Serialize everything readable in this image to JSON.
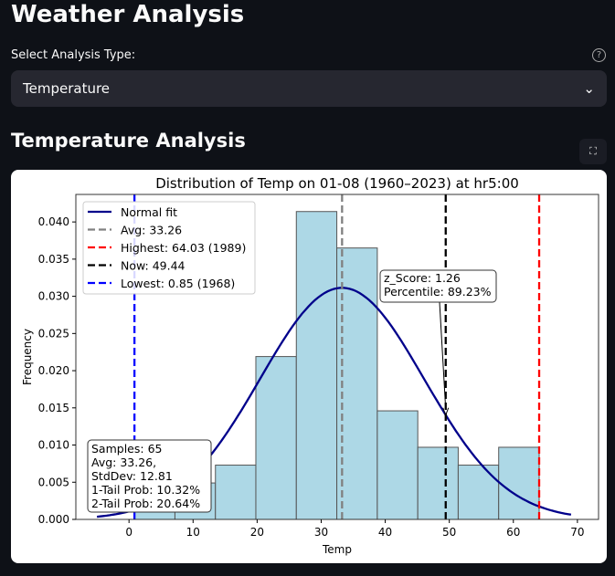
{
  "app": {
    "title": "Weather Analysis",
    "select_label": "Select Analysis Type:",
    "select_value": "Temperature",
    "section_title": "Temperature Analysis",
    "help_icon": "question-circle-icon",
    "fullscreen_icon": "fullscreen-icon"
  },
  "chart_data": {
    "type": "bar",
    "title": "Distribution of Temp on 01-08 (1960–2023) at hr5:00",
    "xlabel": "Temp",
    "ylabel": "Frequency",
    "xlim": [
      -8.3,
      73.3
    ],
    "ylim": [
      0,
      0.0437
    ],
    "xticks": [
      0,
      10,
      20,
      30,
      40,
      50,
      60,
      70
    ],
    "yticks": [
      "0.000",
      "0.005",
      "0.010",
      "0.015",
      "0.020",
      "0.025",
      "0.030",
      "0.035",
      "0.040"
    ],
    "bin_edges": [
      0.85,
      7.17,
      13.49,
      19.8,
      26.12,
      32.44,
      38.76,
      45.08,
      51.39,
      57.71,
      64.03
    ],
    "densities": [
      0.0049,
      0.0049,
      0.0073,
      0.0219,
      0.0414,
      0.0365,
      0.0146,
      0.0097,
      0.0073,
      0.0097
    ],
    "normal_fit": {
      "mean": 33.26,
      "std": 12.81,
      "x_range": [
        -5,
        69
      ]
    },
    "vlines": [
      {
        "x": 33.26,
        "color": "#808080",
        "label": "Avg: 33.26"
      },
      {
        "x": 64.03,
        "color": "#ff0000",
        "label": "Highest: 64.03 (1989)"
      },
      {
        "x": 49.44,
        "color": "#000000",
        "label": "Now: 49.44"
      },
      {
        "x": 0.85,
        "color": "#0000ff",
        "label": "Lowest: 0.85 (1968)"
      }
    ],
    "legend": {
      "placement": "top-left",
      "entries": [
        "Normal fit",
        "Avg: 33.26",
        "Highest: 64.03 (1989)",
        "Now: 49.44",
        "Lowest: 0.85 (1968)"
      ]
    },
    "annotation": [
      "z_Score: 1.26",
      "Percentile: 89.23%"
    ],
    "stats_box": [
      "Samples: 65",
      "Avg: 33.26,",
      "StdDev: 12.81",
      "1-Tail Prob: 10.32%",
      "2-Tail Prob: 20.64%"
    ],
    "colors": {
      "bar": "#add8e6",
      "curve": "#00008b"
    }
  }
}
